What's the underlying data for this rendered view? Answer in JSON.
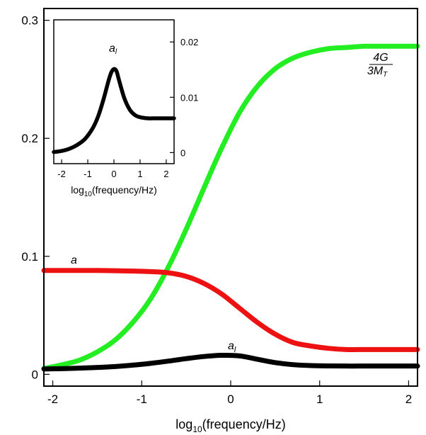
{
  "chart_data": [
    {
      "type": "line",
      "title": "",
      "xlabel": "log10(frequency/Hz)",
      "ylabel": "",
      "xlim": [
        -2.1,
        2.1
      ],
      "ylim": [
        -0.01,
        0.31
      ],
      "x_ticks": [
        -2,
        -1,
        0,
        1,
        2
      ],
      "x_tick_labels": [
        "-2",
        "-1",
        "0",
        "1",
        "2"
      ],
      "y_ticks": [
        0,
        0.1,
        0.2,
        0.3
      ],
      "y_tick_labels": [
        "0",
        "0.1",
        "0.2",
        "0.3"
      ],
      "grid": false,
      "legend": "none",
      "series": [
        {
          "name": "4G/3M_T",
          "color": "#22ee22",
          "x": [
            -2.1,
            -1.9,
            -1.7,
            -1.5,
            -1.3,
            -1.1,
            -0.9,
            -0.7,
            -0.5,
            -0.3,
            -0.1,
            0.1,
            0.3,
            0.5,
            0.7,
            0.9,
            1.1,
            1.3,
            1.5,
            1.7,
            1.9,
            2.1
          ],
          "values": [
            0.005,
            0.008,
            0.012,
            0.019,
            0.029,
            0.044,
            0.064,
            0.091,
            0.123,
            0.158,
            0.192,
            0.222,
            0.244,
            0.259,
            0.268,
            0.273,
            0.276,
            0.277,
            0.278,
            0.278,
            0.278,
            0.278
          ]
        },
        {
          "name": "a",
          "color": "#ee1111",
          "x": [
            -2.1,
            -1.9,
            -1.7,
            -1.5,
            -1.3,
            -1.1,
            -0.9,
            -0.7,
            -0.5,
            -0.3,
            -0.1,
            0.1,
            0.3,
            0.5,
            0.7,
            0.9,
            1.1,
            1.3,
            1.5,
            1.7,
            1.9,
            2.1
          ],
          "values": [
            0.088,
            0.088,
            0.088,
            0.088,
            0.0878,
            0.0875,
            0.087,
            0.086,
            0.083,
            0.077,
            0.068,
            0.056,
            0.044,
            0.034,
            0.027,
            0.024,
            0.022,
            0.021,
            0.021,
            0.021,
            0.021,
            0.021
          ]
        },
        {
          "name": "a_l",
          "color": "#000000",
          "x": [
            -2.1,
            -1.9,
            -1.7,
            -1.5,
            -1.3,
            -1.1,
            -0.9,
            -0.7,
            -0.5,
            -0.3,
            -0.1,
            0.1,
            0.3,
            0.5,
            0.7,
            0.9,
            1.1,
            1.3,
            1.5,
            1.7,
            1.9,
            2.1
          ],
          "values": [
            0.0045,
            0.0048,
            0.0052,
            0.0058,
            0.0066,
            0.0078,
            0.0093,
            0.0112,
            0.0133,
            0.0151,
            0.0161,
            0.0156,
            0.0128,
            0.0099,
            0.0082,
            0.0074,
            0.0071,
            0.007,
            0.007,
            0.007,
            0.007,
            0.007
          ]
        }
      ],
      "annotations": [
        {
          "text_parts": [
            "a"
          ],
          "series": "a"
        },
        {
          "text_parts": [
            "a",
            "l"
          ],
          "series": "a_l"
        },
        {
          "text_parts": [
            "4G",
            "3M",
            "T"
          ],
          "series": "4G/3M_T"
        }
      ]
    },
    {
      "type": "line",
      "title": "",
      "xlabel": "log10(frequency/Hz)",
      "ylabel": "",
      "xlim": [
        -2.3,
        2.3
      ],
      "ylim": [
        -0.002,
        0.024
      ],
      "x_ticks": [
        -2,
        -1,
        0,
        1,
        2
      ],
      "x_tick_labels": [
        "-2",
        "-1",
        "0",
        "1",
        "2"
      ],
      "y_ticks": [
        0,
        0.01,
        0.02
      ],
      "y_tick_labels": [
        "0",
        "0.01",
        "0.02"
      ],
      "y_axis_side": "right",
      "grid": false,
      "legend": "none",
      "series": [
        {
          "name": "a_l",
          "color": "#000000",
          "x": [
            -2.3,
            -2.0,
            -1.7,
            -1.4,
            -1.1,
            -0.8,
            -0.6,
            -0.4,
            -0.2,
            -0.1,
            0.0,
            0.1,
            0.2,
            0.4,
            0.6,
            0.8,
            1.0,
            1.3,
            1.6,
            2.0,
            2.3
          ],
          "values": [
            0.0001,
            0.0003,
            0.0007,
            0.0014,
            0.0025,
            0.0045,
            0.0066,
            0.0096,
            0.0131,
            0.0145,
            0.0151,
            0.0147,
            0.013,
            0.0098,
            0.0078,
            0.0068,
            0.0064,
            0.0062,
            0.0062,
            0.0062,
            0.0062
          ]
        }
      ],
      "annotations": [
        {
          "text_parts": [
            "a",
            "l"
          ],
          "series": "a_l"
        }
      ]
    }
  ]
}
